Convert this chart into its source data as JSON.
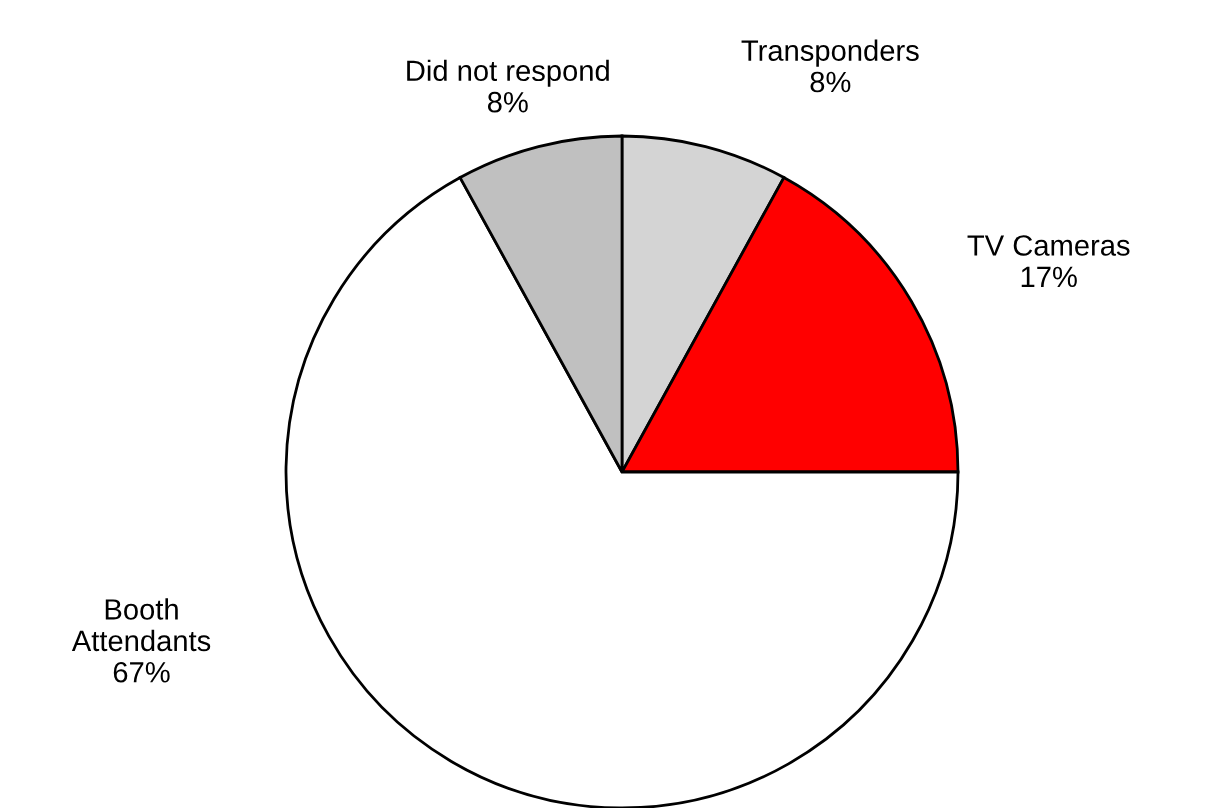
{
  "chart_data": {
    "type": "pie",
    "categories": [
      "Transponders",
      "TV Cameras",
      "Booth\nAttendants",
      "Did not respond"
    ],
    "values": [
      8,
      17,
      67,
      8
    ],
    "value_labels": [
      "8%",
      "17%",
      "67%",
      "8%"
    ],
    "colors": [
      "#d4d4d4",
      "#ff0000",
      "#ffffff",
      "#c0c0c0"
    ],
    "legend": false
  }
}
